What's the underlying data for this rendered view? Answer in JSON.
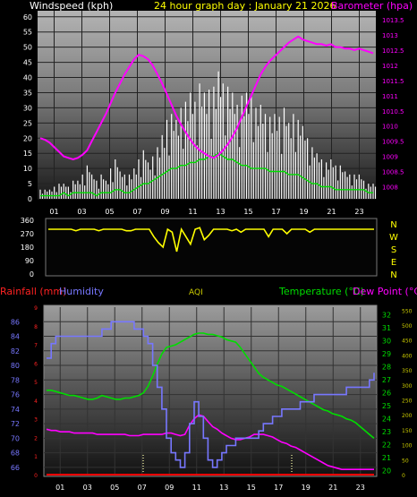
{
  "header": {
    "windspeed_label": "Windspeed (kph)",
    "title": "24 hour graph day : January 21 2026",
    "barometer_label": "Barometer (hpa)"
  },
  "hours": [
    "01",
    "03",
    "05",
    "07",
    "09",
    "11",
    "13",
    "15",
    "17",
    "19",
    "21",
    "23"
  ],
  "colors": {
    "wind_gust": "#ffffff",
    "wind_avg": "#00dd00",
    "barometer": "#ff00ff",
    "direction": "#ffff00",
    "rain": "#ff0000",
    "humidity": "#7777ff",
    "temperature": "#00dd00",
    "dewpoint": "#ff00ff",
    "aqi": "#cccc00"
  },
  "chart_data": [
    {
      "type": "line",
      "series": [
        {
          "name": "Windspeed (kph)",
          "axis": "left",
          "description": "gust",
          "values": [
            3,
            3,
            3,
            4,
            5,
            5,
            4,
            6,
            6,
            8,
            11,
            8,
            6,
            8,
            6,
            10,
            13,
            9,
            8,
            8,
            10,
            13,
            16,
            12,
            14,
            17,
            21,
            26,
            28,
            26,
            30,
            32,
            35,
            32,
            38,
            35,
            36,
            37,
            42,
            38,
            37,
            35,
            31,
            34,
            35,
            34,
            30,
            31,
            28,
            27,
            28,
            27,
            30,
            25,
            28,
            26,
            24,
            20,
            17,
            15,
            13,
            12,
            13,
            11,
            11,
            9,
            8,
            8,
            8,
            6,
            5,
            5
          ]
        },
        {
          "name": "Windspeed (kph)",
          "axis": "left",
          "description": "average",
          "values": [
            1,
            1,
            1,
            1,
            1,
            2,
            1,
            2,
            2,
            2,
            2,
            2,
            1,
            2,
            2,
            2,
            3,
            3,
            2,
            2,
            3,
            4,
            5,
            5,
            6,
            7,
            8,
            9,
            10,
            10,
            11,
            11,
            12,
            12,
            13,
            13,
            14,
            14,
            15,
            14,
            13,
            13,
            12,
            11,
            11,
            10,
            10,
            10,
            10,
            9,
            9,
            9,
            9,
            8,
            8,
            8,
            7,
            6,
            5,
            5,
            4,
            4,
            4,
            3,
            3,
            3,
            3,
            3,
            3,
            3,
            2,
            2
          ]
        },
        {
          "name": "Barometer (hpa)",
          "axis": "right",
          "values": [
            1009.6,
            1009.55,
            1009.45,
            1009.3,
            1009.15,
            1009.0,
            1008.95,
            1008.9,
            1008.95,
            1009.05,
            1009.2,
            1009.5,
            1009.8,
            1010.1,
            1010.4,
            1010.75,
            1011.1,
            1011.4,
            1011.7,
            1011.95,
            1012.2,
            1012.35,
            1012.3,
            1012.2,
            1012.0,
            1011.7,
            1011.4,
            1011.05,
            1010.7,
            1010.35,
            1010.05,
            1009.8,
            1009.55,
            1009.35,
            1009.2,
            1009.1,
            1009.0,
            1008.95,
            1009.05,
            1009.2,
            1009.4,
            1009.65,
            1009.95,
            1010.3,
            1010.65,
            1011.0,
            1011.35,
            1011.7,
            1011.95,
            1012.15,
            1012.3,
            1012.45,
            1012.6,
            1012.75,
            1012.85,
            1012.95,
            1012.85,
            1012.8,
            1012.75,
            1012.7,
            1012.7,
            1012.65,
            1012.7,
            1012.6,
            1012.6,
            1012.55,
            1012.55,
            1012.5,
            1012.55,
            1012.5,
            1012.45,
            1012.4
          ]
        }
      ],
      "left_axis": {
        "label": "Windspeed (kph)",
        "ticks": [
          0,
          5,
          10,
          15,
          20,
          25,
          30,
          35,
          40,
          45,
          50,
          55,
          60
        ],
        "ylim": [
          0,
          62
        ]
      },
      "right_axis": {
        "label": "Barometer (hpa)",
        "ticks": [
          1008,
          1008.5,
          1009,
          1009.5,
          1010,
          1010.5,
          1011,
          1011.5,
          1012,
          1012.5,
          1013,
          1013.5
        ],
        "ylim": [
          1007.6,
          1013.8
        ]
      },
      "x_ticks": [
        "01",
        "03",
        "05",
        "07",
        "09",
        "11",
        "13",
        "15",
        "17",
        "19",
        "21",
        "23"
      ]
    },
    {
      "type": "line",
      "series": [
        {
          "name": "wind direction",
          "values": [
            300,
            300,
            300,
            300,
            300,
            300,
            290,
            300,
            300,
            300,
            300,
            290,
            300,
            300,
            300,
            300,
            300,
            290,
            290,
            300,
            300,
            300,
            300,
            250,
            210,
            180,
            300,
            280,
            150,
            300,
            250,
            200,
            300,
            310,
            230,
            260,
            300,
            300,
            300,
            300,
            290,
            300,
            280,
            300,
            300,
            300,
            300,
            300,
            250,
            300,
            300,
            300,
            270,
            300,
            300,
            300,
            300,
            280,
            300,
            300,
            300,
            300,
            300,
            300,
            300,
            300,
            300,
            300,
            300,
            300,
            300,
            300
          ]
        }
      ],
      "left_axis": {
        "ticks": [
          0,
          90,
          180,
          270,
          360
        ],
        "ylim": [
          0,
          360
        ]
      },
      "right_axis": {
        "ticks": [
          "N",
          "W",
          "S",
          "E",
          "N"
        ]
      }
    },
    {
      "type": "line",
      "legend": [
        "Rainfall (mm)",
        "Humidity",
        "AQI",
        "Temperature (°C)",
        "Dew Point (°C)"
      ],
      "series": [
        {
          "name": "Humidity",
          "axis": "humidity",
          "values": [
            81,
            83,
            84,
            84,
            84,
            84,
            84,
            84,
            84,
            84,
            84,
            84,
            85,
            85,
            86,
            86,
            86,
            86,
            86,
            85,
            85,
            84,
            83,
            80,
            77,
            74,
            70,
            68,
            67,
            66,
            68,
            72,
            75,
            73,
            70,
            67,
            66,
            67,
            68,
            69,
            69,
            70,
            70,
            70,
            70,
            70,
            71,
            72,
            72,
            73,
            73,
            74,
            74,
            74,
            74,
            75,
            75,
            75,
            76,
            76,
            76,
            76,
            76,
            76,
            76,
            77,
            77,
            77,
            77,
            77,
            78,
            79
          ]
        },
        {
          "name": "Temperature (°C)",
          "axis": "temp",
          "values": [
            26.2,
            26.2,
            26.1,
            26.0,
            25.9,
            25.8,
            25.8,
            25.7,
            25.6,
            25.5,
            25.5,
            25.6,
            25.8,
            25.7,
            25.6,
            25.5,
            25.5,
            25.6,
            25.6,
            25.7,
            25.8,
            26.0,
            26.5,
            27.3,
            28.2,
            29.0,
            29.5,
            29.6,
            29.7,
            29.9,
            30.1,
            30.3,
            30.5,
            30.6,
            30.6,
            30.5,
            30.5,
            30.4,
            30.3,
            30.1,
            30.0,
            29.9,
            29.5,
            29.0,
            28.5,
            28.0,
            27.5,
            27.2,
            27.0,
            26.8,
            26.6,
            26.5,
            26.3,
            26.1,
            25.9,
            25.7,
            25.5,
            25.3,
            25.1,
            24.9,
            24.7,
            24.6,
            24.4,
            24.3,
            24.2,
            24.0,
            23.9,
            23.7,
            23.4,
            23.1,
            22.8,
            22.5
          ]
        },
        {
          "name": "Dew Point (°C)",
          "axis": "temp",
          "values": [
            23.2,
            23.1,
            23.1,
            23.0,
            23.0,
            23.0,
            22.9,
            22.9,
            22.9,
            22.9,
            22.9,
            22.8,
            22.8,
            22.8,
            22.8,
            22.8,
            22.8,
            22.8,
            22.7,
            22.7,
            22.7,
            22.8,
            22.8,
            22.8,
            22.8,
            22.8,
            22.9,
            22.9,
            22.8,
            22.7,
            22.8,
            23.5,
            24.0,
            24.3,
            24.2,
            23.8,
            23.4,
            23.2,
            22.9,
            22.7,
            22.5,
            22.4,
            22.4,
            22.5,
            22.6,
            22.8,
            22.8,
            22.8,
            22.7,
            22.6,
            22.4,
            22.2,
            22.1,
            21.9,
            21.8,
            21.6,
            21.4,
            21.2,
            21.0,
            20.8,
            20.6,
            20.4,
            20.3,
            20.2,
            20.1,
            20.1,
            20.1,
            20.1,
            20.1,
            20.1,
            20.1,
            20.1
          ]
        },
        {
          "name": "Rainfall (mm)",
          "axis": "rain",
          "values": [
            0,
            0,
            0,
            0,
            0,
            0,
            0,
            0,
            0,
            0,
            0,
            0,
            0,
            0,
            0,
            0,
            0,
            0,
            0,
            0,
            0,
            0,
            0,
            0,
            0,
            0,
            0,
            0,
            0,
            0,
            0,
            0,
            0,
            0,
            0,
            0,
            0,
            0,
            0,
            0,
            0,
            0,
            0,
            0,
            0,
            0,
            0,
            0,
            0,
            0,
            0,
            0,
            0,
            0,
            0,
            0,
            0,
            0,
            0,
            0,
            0,
            0,
            0,
            0,
            0,
            0,
            0,
            0,
            0,
            0,
            0,
            0
          ]
        }
      ],
      "humidity_axis": {
        "ticks": [
          66,
          68,
          70,
          72,
          74,
          76,
          78,
          80,
          82,
          84,
          86
        ],
        "ylim": [
          65,
          88
        ]
      },
      "rain_axis": {
        "ticks": [
          0,
          1,
          2,
          3,
          4,
          5,
          6,
          7,
          8,
          9
        ],
        "ylim": [
          0,
          9
        ]
      },
      "temp_axis": {
        "ticks": [
          20,
          21,
          22,
          23,
          24,
          25,
          26,
          27,
          28,
          29,
          30,
          31,
          32
        ],
        "ylim": [
          19.7,
          32.6
        ]
      },
      "aqi_axis": {
        "ticks": [
          0,
          50,
          100,
          150,
          200,
          250,
          300,
          350,
          400,
          450,
          500,
          550
        ],
        "ylim": [
          0,
          560
        ]
      },
      "x_ticks": [
        "01",
        "03",
        "05",
        "07",
        "09",
        "11",
        "13",
        "15",
        "17",
        "19",
        "21",
        "23"
      ]
    }
  ],
  "panel2": {
    "right_letters": [
      "N",
      "W",
      "S",
      "E",
      "N"
    ]
  },
  "panel3": {
    "rain_label": "Rainfall (mm)",
    "humidity_label": "Humidity",
    "aqi_label": "AQI",
    "temp_label": "Temperature (°C)",
    "dew_label": "Dew Point (°C)"
  }
}
